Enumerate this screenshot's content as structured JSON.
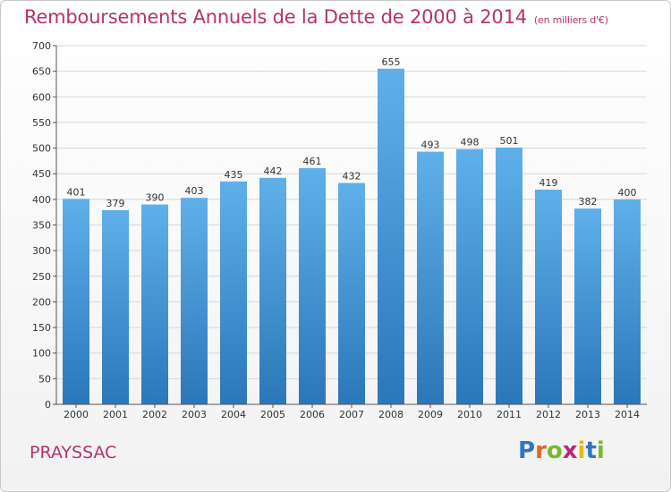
{
  "title": "Remboursements Annuels de la Dette de 2000 à 2014",
  "unit_note": "(en milliers d'€)",
  "commune": "PRAYSSAC",
  "logo_text": "Proxiti",
  "colors": {
    "title": "#b5336b",
    "bar_top": "#5fb0ea",
    "bar_bottom": "#2b77b9",
    "grid": "#d6d6d6"
  },
  "chart_data": {
    "type": "bar",
    "title": "Remboursements Annuels de la Dette de 2000 à 2014",
    "categories": [
      "2000",
      "2001",
      "2002",
      "2003",
      "2004",
      "2005",
      "2006",
      "2007",
      "2008",
      "2009",
      "2010",
      "2011",
      "2012",
      "2013",
      "2014"
    ],
    "values": [
      401,
      379,
      390,
      403,
      435,
      442,
      461,
      432,
      655,
      493,
      498,
      501,
      419,
      382,
      400
    ],
    "ylim": [
      0,
      700
    ],
    "yticks": [
      0,
      50,
      100,
      150,
      200,
      250,
      300,
      350,
      400,
      450,
      500,
      550,
      600,
      650,
      700
    ],
    "grid": true,
    "xlabel": "",
    "ylabel": ""
  }
}
